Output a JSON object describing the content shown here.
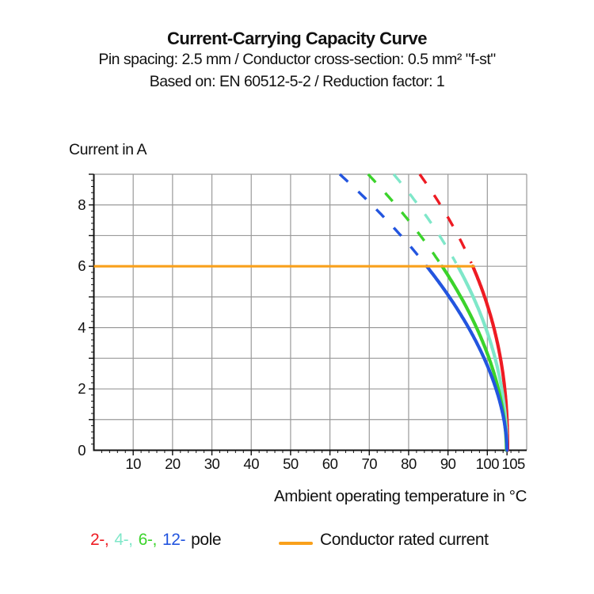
{
  "header": {
    "title": "Current-Carrying Capacity Curve",
    "subtitle1": "Pin spacing: 2.5 mm / Conductor cross-section: 0.5 mm² \"f-st\"",
    "subtitle2": "Based on: EN 60512-5-2 / Reduction factor: 1"
  },
  "chart_data": {
    "type": "line",
    "title": "Current-Carrying Capacity Curve",
    "xlabel": "Ambient operating temperature in °C",
    "ylabel": "Current in A",
    "xlim": [
      0,
      110
    ],
    "ylim": [
      0,
      9
    ],
    "x_ticks_labeled": [
      10,
      20,
      30,
      40,
      50,
      60,
      70,
      80,
      90,
      100,
      105
    ],
    "x_minor_tick_step": 2,
    "y_gridline_step": 1,
    "y_ticks_labeled": [
      0,
      2,
      4,
      6,
      8
    ],
    "y_minor_tick_step": 0.2,
    "grid": true,
    "rated_line": {
      "y": 6,
      "x_start": 0,
      "x_end": 96.8,
      "color": "#F9A01B",
      "label": "Conductor rated current"
    },
    "series": [
      {
        "name": "2-pole",
        "color": "#EE1B23",
        "solid_below_A": 6,
        "dashed_above_A": 6,
        "t_at_9A": 82.8,
        "t_at_6A": 96.3,
        "t_at_0A": 105.15,
        "points_T_I": [
          [
            82.8,
            9
          ],
          [
            88.1,
            8
          ],
          [
            92.6,
            7
          ],
          [
            96.3,
            6
          ],
          [
            99.3,
            5
          ],
          [
            101.7,
            4
          ],
          [
            103.4,
            3
          ],
          [
            104.5,
            2
          ],
          [
            105.0,
            1
          ],
          [
            105.15,
            0
          ]
        ]
      },
      {
        "name": "4-pole",
        "color": "#7FE7C9",
        "solid_below_A": 6,
        "dashed_above_A": 6,
        "t_at_9A": 76.2,
        "t_at_6A": 92.5,
        "t_at_0A": 104.95,
        "points_T_I": [
          [
            76.2,
            9
          ],
          [
            82.4,
            8
          ],
          [
            87.8,
            7
          ],
          [
            92.5,
            6
          ],
          [
            96.4,
            5
          ],
          [
            99.6,
            4
          ],
          [
            102.0,
            3
          ],
          [
            103.7,
            2
          ],
          [
            104.7,
            1
          ],
          [
            104.95,
            0
          ]
        ]
      },
      {
        "name": "6-pole",
        "color": "#3BD32B",
        "solid_below_A": 6,
        "dashed_above_A": 6,
        "t_at_9A": 69.7,
        "t_at_6A": 88.5,
        "t_at_0A": 104.85,
        "points_T_I": [
          [
            69.7,
            9
          ],
          [
            76.7,
            8
          ],
          [
            83.0,
            7
          ],
          [
            88.5,
            6
          ],
          [
            93.3,
            5
          ],
          [
            97.3,
            4
          ],
          [
            100.5,
            3
          ],
          [
            102.8,
            2
          ],
          [
            104.3,
            1
          ],
          [
            104.85,
            0
          ]
        ]
      },
      {
        "name": "12-pole",
        "color": "#2355DF",
        "solid_below_A": 6,
        "dashed_above_A": 6,
        "t_at_9A": 62.5,
        "t_at_6A": 84.6,
        "t_at_0A": 105.0,
        "points_T_I": [
          [
            62.5,
            9
          ],
          [
            70.7,
            8
          ],
          [
            78.0,
            7
          ],
          [
            84.6,
            6
          ],
          [
            90.3,
            5
          ],
          [
            95.2,
            4
          ],
          [
            99.1,
            3
          ],
          [
            102.1,
            2
          ],
          [
            104.0,
            1
          ],
          [
            105.0,
            0
          ]
        ]
      }
    ]
  },
  "legend": {
    "pole_segments": [
      {
        "text": "2-,",
        "color": "#EE1B23"
      },
      {
        "text": "4-,",
        "color": "#7FE7C9"
      },
      {
        "text": "6-,",
        "color": "#3BD32B"
      },
      {
        "text": "12-",
        "color": "#2355DF"
      },
      {
        "text": "pole",
        "color": "#111111"
      }
    ],
    "rated_label": "Conductor rated current",
    "rated_color": "#F9A01B"
  },
  "style_colors": {
    "grid": "#9A9A9A",
    "axis": "#111111",
    "text": "#111111",
    "background": "#FFFFFF"
  }
}
